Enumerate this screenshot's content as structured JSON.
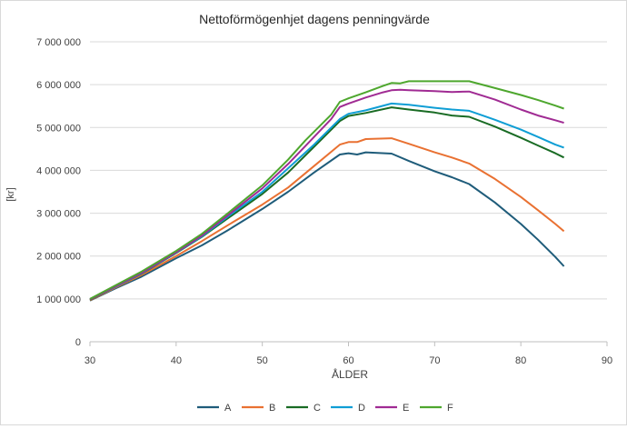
{
  "chart_data": {
    "type": "line",
    "title": "Nettoförmögenhjet dagens penningvärde",
    "xlabel": "ÅLDER",
    "ylabel": "[kr]",
    "xlim": [
      30,
      90
    ],
    "ylim": [
      0,
      7000000
    ],
    "x_ticks": [
      "30",
      "40",
      "50",
      "60",
      "70",
      "80",
      "90"
    ],
    "y_ticks": [
      "0",
      "1 000 000",
      "2 000 000",
      "3 000 000",
      "4 000 000",
      "5 000 000",
      "6 000 000",
      "7 000 000"
    ],
    "grid": "horizontal",
    "legend_position": "bottom",
    "series": [
      {
        "name": "A",
        "color": "#1f5c7a",
        "points": [
          [
            30,
            960000
          ],
          [
            33,
            1250000
          ],
          [
            36,
            1520000
          ],
          [
            40,
            1950000
          ],
          [
            43,
            2250000
          ],
          [
            46,
            2600000
          ],
          [
            50,
            3100000
          ],
          [
            53,
            3500000
          ],
          [
            56,
            3950000
          ],
          [
            59,
            4370000
          ],
          [
            60,
            4400000
          ],
          [
            61,
            4370000
          ],
          [
            62,
            4420000
          ],
          [
            65,
            4390000
          ],
          [
            67,
            4220000
          ],
          [
            70,
            3980000
          ],
          [
            72,
            3840000
          ],
          [
            74,
            3680000
          ],
          [
            77,
            3250000
          ],
          [
            80,
            2750000
          ],
          [
            82,
            2380000
          ],
          [
            84,
            1980000
          ],
          [
            85,
            1760000
          ]
        ]
      },
      {
        "name": "B",
        "color": "#e97132",
        "points": [
          [
            30,
            970000
          ],
          [
            33,
            1270000
          ],
          [
            36,
            1560000
          ],
          [
            40,
            2000000
          ],
          [
            43,
            2350000
          ],
          [
            46,
            2720000
          ],
          [
            50,
            3200000
          ],
          [
            53,
            3600000
          ],
          [
            56,
            4100000
          ],
          [
            59,
            4600000
          ],
          [
            60,
            4660000
          ],
          [
            61,
            4660000
          ],
          [
            62,
            4730000
          ],
          [
            65,
            4750000
          ],
          [
            67,
            4620000
          ],
          [
            70,
            4420000
          ],
          [
            72,
            4300000
          ],
          [
            74,
            4160000
          ],
          [
            77,
            3800000
          ],
          [
            80,
            3380000
          ],
          [
            82,
            3070000
          ],
          [
            84,
            2750000
          ],
          [
            85,
            2580000
          ]
        ]
      },
      {
        "name": "C",
        "color": "#196b24",
        "points": [
          [
            30,
            980000
          ],
          [
            33,
            1290000
          ],
          [
            36,
            1590000
          ],
          [
            40,
            2070000
          ],
          [
            43,
            2450000
          ],
          [
            46,
            2880000
          ],
          [
            50,
            3450000
          ],
          [
            53,
            3950000
          ],
          [
            56,
            4550000
          ],
          [
            59,
            5150000
          ],
          [
            60,
            5270000
          ],
          [
            62,
            5340000
          ],
          [
            65,
            5470000
          ],
          [
            67,
            5420000
          ],
          [
            70,
            5350000
          ],
          [
            72,
            5280000
          ],
          [
            74,
            5250000
          ],
          [
            77,
            5020000
          ],
          [
            80,
            4760000
          ],
          [
            82,
            4580000
          ],
          [
            84,
            4400000
          ],
          [
            85,
            4300000
          ]
        ]
      },
      {
        "name": "D",
        "color": "#0f9ed5",
        "points": [
          [
            30,
            990000
          ],
          [
            33,
            1290000
          ],
          [
            36,
            1600000
          ],
          [
            40,
            2080000
          ],
          [
            43,
            2460000
          ],
          [
            46,
            2920000
          ],
          [
            50,
            3500000
          ],
          [
            53,
            4050000
          ],
          [
            56,
            4600000
          ],
          [
            59,
            5200000
          ],
          [
            60,
            5320000
          ],
          [
            62,
            5400000
          ],
          [
            65,
            5560000
          ],
          [
            67,
            5530000
          ],
          [
            70,
            5460000
          ],
          [
            72,
            5420000
          ],
          [
            74,
            5390000
          ],
          [
            77,
            5180000
          ],
          [
            80,
            4950000
          ],
          [
            82,
            4780000
          ],
          [
            84,
            4600000
          ],
          [
            85,
            4530000
          ]
        ]
      },
      {
        "name": "E",
        "color": "#a02b93",
        "points": [
          [
            30,
            990000
          ],
          [
            33,
            1300000
          ],
          [
            36,
            1610000
          ],
          [
            40,
            2090000
          ],
          [
            43,
            2480000
          ],
          [
            46,
            2950000
          ],
          [
            50,
            3580000
          ],
          [
            53,
            4150000
          ],
          [
            56,
            4780000
          ],
          [
            58,
            5200000
          ],
          [
            59,
            5480000
          ],
          [
            60,
            5560000
          ],
          [
            62,
            5700000
          ],
          [
            64,
            5820000
          ],
          [
            65,
            5870000
          ],
          [
            66,
            5880000
          ],
          [
            67,
            5870000
          ],
          [
            70,
            5850000
          ],
          [
            72,
            5830000
          ],
          [
            74,
            5840000
          ],
          [
            77,
            5650000
          ],
          [
            80,
            5420000
          ],
          [
            82,
            5280000
          ],
          [
            84,
            5170000
          ],
          [
            85,
            5110000
          ]
        ]
      },
      {
        "name": "F",
        "color": "#4ea72e",
        "points": [
          [
            30,
            1000000
          ],
          [
            33,
            1320000
          ],
          [
            36,
            1640000
          ],
          [
            40,
            2120000
          ],
          [
            43,
            2520000
          ],
          [
            46,
            3000000
          ],
          [
            50,
            3650000
          ],
          [
            53,
            4250000
          ],
          [
            55,
            4700000
          ],
          [
            58,
            5300000
          ],
          [
            59,
            5600000
          ],
          [
            60,
            5680000
          ],
          [
            62,
            5820000
          ],
          [
            64,
            5970000
          ],
          [
            65,
            6040000
          ],
          [
            66,
            6030000
          ],
          [
            67,
            6080000
          ],
          [
            70,
            6080000
          ],
          [
            72,
            6080000
          ],
          [
            74,
            6080000
          ],
          [
            77,
            5920000
          ],
          [
            80,
            5760000
          ],
          [
            82,
            5640000
          ],
          [
            84,
            5510000
          ],
          [
            85,
            5440000
          ]
        ]
      }
    ]
  }
}
